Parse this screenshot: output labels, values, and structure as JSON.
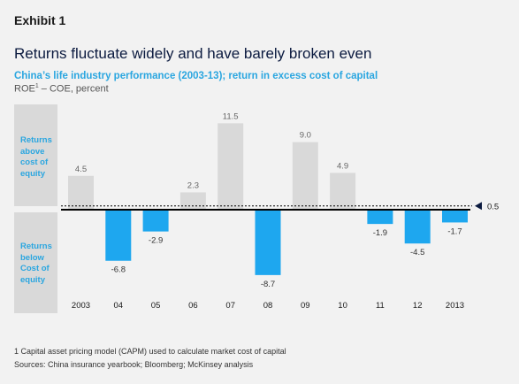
{
  "header": {
    "exhibit": "Exhibit 1",
    "title": "Returns fluctuate widely and have barely broken even",
    "subtitle": "China’s life industry performance (2003-13); return in excess cost of capital",
    "unit_prefix": "ROE",
    "unit_footnote_mark": "1",
    "unit_suffix": " – COE, percent"
  },
  "side_labels": {
    "above": [
      "Returns",
      "above",
      "cost of",
      "equity"
    ],
    "below": [
      "Returns",
      "below",
      "Cost of",
      "equity"
    ]
  },
  "chart_data": {
    "type": "bar",
    "title": "",
    "xlabel": "",
    "ylabel": "",
    "categories": [
      "2003",
      "04",
      "05",
      "06",
      "07",
      "08",
      "09",
      "10",
      "11",
      "12",
      "2013"
    ],
    "values": [
      4.5,
      -6.8,
      -2.9,
      2.3,
      11.5,
      -8.7,
      9.0,
      4.9,
      -1.9,
      -4.5,
      -1.7
    ],
    "value_labels": [
      "4.5",
      "-6.8",
      "-2.9",
      "2.3",
      "11.5",
      "-8.7",
      "9.0",
      "4.9",
      "-1.9",
      "-4.5",
      "-1.7"
    ],
    "average_line": {
      "value": 0.5,
      "label": "0.5"
    },
    "colors": {
      "positive": "#d9d9d9",
      "negative": "#1ea7ef",
      "positive_label": "#666666",
      "negative_label": "#333333"
    },
    "ylim": [
      -10,
      12.5
    ],
    "grid": false,
    "legend": "none"
  },
  "footer": {
    "footnote": "1 Capital asset pricing model (CAPM) used to calculate market cost of capital",
    "sources": "Sources: China insurance yearbook; Bloomberg; McKinsey analysis"
  }
}
